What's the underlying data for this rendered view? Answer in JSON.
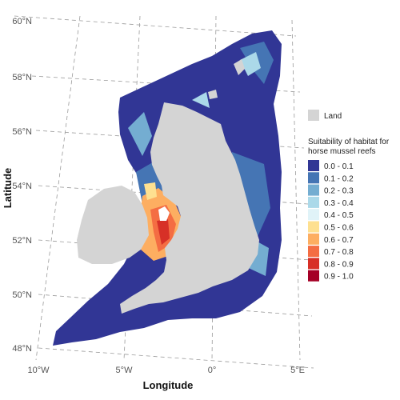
{
  "axes": {
    "xlabel": "Longitude",
    "ylabel": "Latitude",
    "lon_ticks": [
      "10°W",
      "5°W",
      "0°",
      "5°E"
    ],
    "lat_ticks": [
      "48°N",
      "50°N",
      "52°N",
      "54°N",
      "56°N",
      "58°N",
      "60°N"
    ]
  },
  "legend": {
    "land_label": "Land",
    "land_color": "#d4d4d4",
    "title_line1": "Suitability of habitat for",
    "title_line2": "horse mussel reefs",
    "classes": [
      {
        "label": "0.0 - 0.1",
        "color": "#313695"
      },
      {
        "label": "0.1 - 0.2",
        "color": "#4575b4"
      },
      {
        "label": "0.2 - 0.3",
        "color": "#74add1"
      },
      {
        "label": "0.3 - 0.4",
        "color": "#abd9e9"
      },
      {
        "label": "0.4 - 0.5",
        "color": "#e0f3f8"
      },
      {
        "label": "0.5 - 0.6",
        "color": "#fee090"
      },
      {
        "label": "0.6 - 0.7",
        "color": "#fdae61"
      },
      {
        "label": "0.7 - 0.8",
        "color": "#f46d43"
      },
      {
        "label": "0.8 - 0.9",
        "color": "#d73027"
      },
      {
        "label": "0.9 - 1.0",
        "color": "#a50026"
      }
    ]
  }
}
